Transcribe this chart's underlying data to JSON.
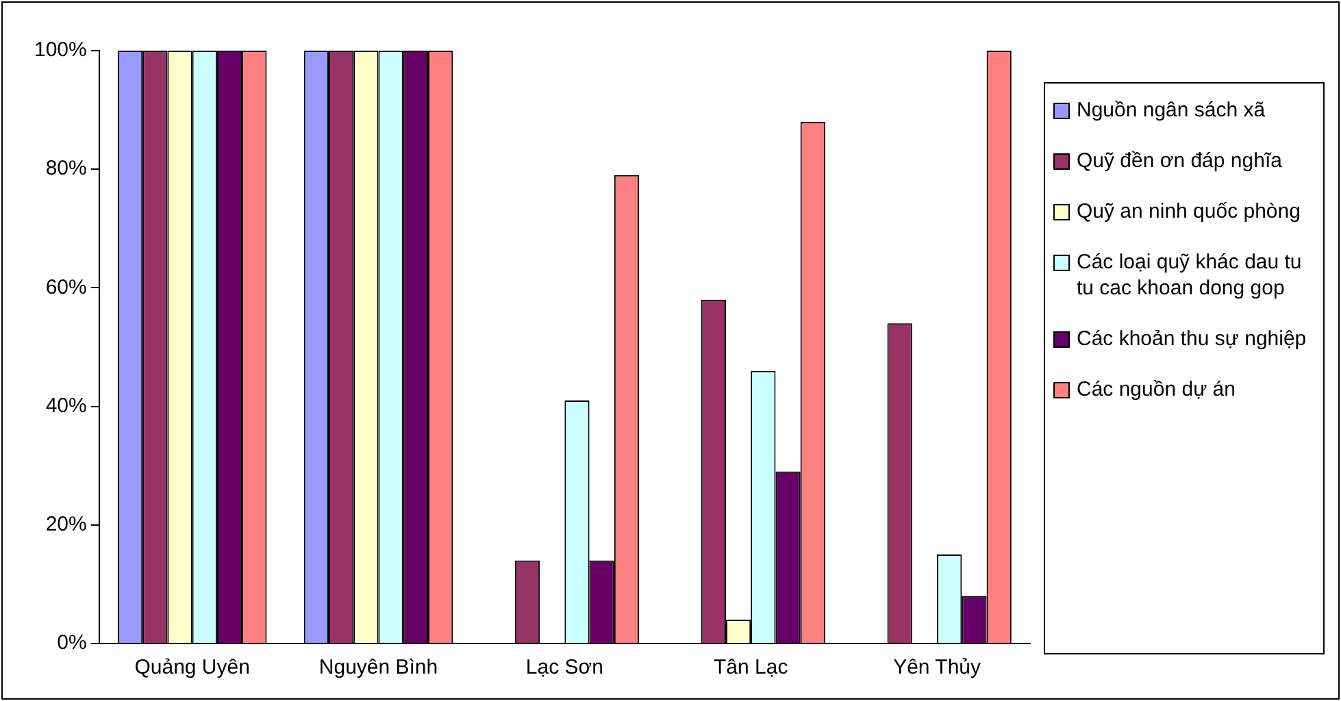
{
  "chart_data": {
    "type": "bar",
    "categories": [
      "Quảng Uyên",
      "Nguyên Bình",
      "Lạc Sơn",
      "Tân Lạc",
      "Yên Thủy"
    ],
    "series": [
      {
        "name": "Nguồn ngân sách xã",
        "color": "#9999ff",
        "values": [
          100,
          100,
          0,
          0,
          0
        ]
      },
      {
        "name": "Quỹ đền ơn đáp nghĩa",
        "color": "#993366",
        "values": [
          100,
          100,
          14,
          58,
          54
        ]
      },
      {
        "name": "Quỹ an ninh quốc phòng",
        "color": "#ffffcc",
        "values": [
          100,
          100,
          0,
          4,
          0
        ]
      },
      {
        "name": "Các loại quỹ khác dau tu tu cac khoan dong gop",
        "color": "#ccffff",
        "values": [
          100,
          100,
          41,
          46,
          15
        ]
      },
      {
        "name": "Các khoản thu sự nghiệp",
        "color": "#660066",
        "values": [
          100,
          100,
          14,
          29,
          8
        ]
      },
      {
        "name": "Các nguồn dự án",
        "color": "#ff8080",
        "values": [
          100,
          100,
          79,
          88,
          100
        ]
      }
    ],
    "ylim": [
      0,
      100
    ],
    "yticks": [
      {
        "value": 0,
        "label": "0%"
      },
      {
        "value": 20,
        "label": "20%"
      },
      {
        "value": 40,
        "label": "40%"
      },
      {
        "value": 60,
        "label": "60%"
      },
      {
        "value": 80,
        "label": "80%"
      },
      {
        "value": 100,
        "label": "100%"
      }
    ],
    "grid": false,
    "legend": "right"
  }
}
